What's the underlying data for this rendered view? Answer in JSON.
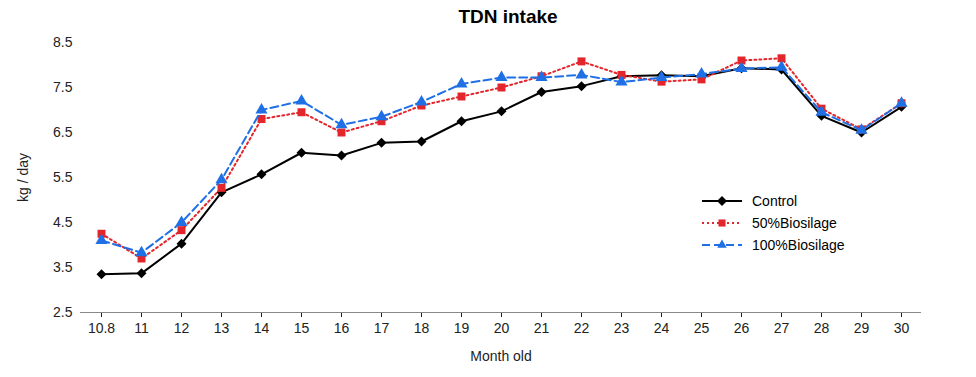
{
  "chart_data": {
    "type": "line",
    "title": "TDN intake",
    "x_label": "Month old",
    "y_label": "kg / day",
    "categories": [
      "10.8",
      "11",
      "12",
      "13",
      "14",
      "15",
      "16",
      "17",
      "18",
      "19",
      "20",
      "21",
      "22",
      "23",
      "24",
      "25",
      "26",
      "27",
      "28",
      "29",
      "30"
    ],
    "series": [
      {
        "name": "Control",
        "color": "#000000",
        "marker": "diamond",
        "line_style": "solid",
        "values": [
          3.35,
          3.37,
          4.03,
          5.17,
          5.57,
          6.05,
          5.99,
          6.27,
          6.3,
          6.75,
          6.97,
          7.4,
          7.53,
          7.75,
          7.77,
          7.75,
          7.93,
          7.9,
          6.87,
          6.5,
          7.07
        ]
      },
      {
        "name": "50%Biosilage",
        "color": "#e3262b",
        "marker": "square",
        "line_style": "dotted",
        "values": [
          4.25,
          3.7,
          4.33,
          5.27,
          6.8,
          6.95,
          6.5,
          6.75,
          7.1,
          7.3,
          7.5,
          7.75,
          8.08,
          7.78,
          7.63,
          7.68,
          8.1,
          8.15,
          7.03,
          6.57,
          7.15
        ]
      },
      {
        "name": "100%Biosilage",
        "color": "#1f6fe5",
        "marker": "triangle",
        "line_style": "dashed",
        "values": [
          4.1,
          3.83,
          4.5,
          5.45,
          7.0,
          7.2,
          6.67,
          6.85,
          7.18,
          7.58,
          7.72,
          7.72,
          7.78,
          7.62,
          7.72,
          7.8,
          7.92,
          7.95,
          6.95,
          6.55,
          7.15
        ]
      }
    ],
    "ylim": [
      2.5,
      8.5
    ],
    "yticks": [
      2.5,
      3.5,
      4.5,
      5.5,
      6.5,
      7.5,
      8.5
    ],
    "grid": false,
    "legend": "lower right"
  }
}
